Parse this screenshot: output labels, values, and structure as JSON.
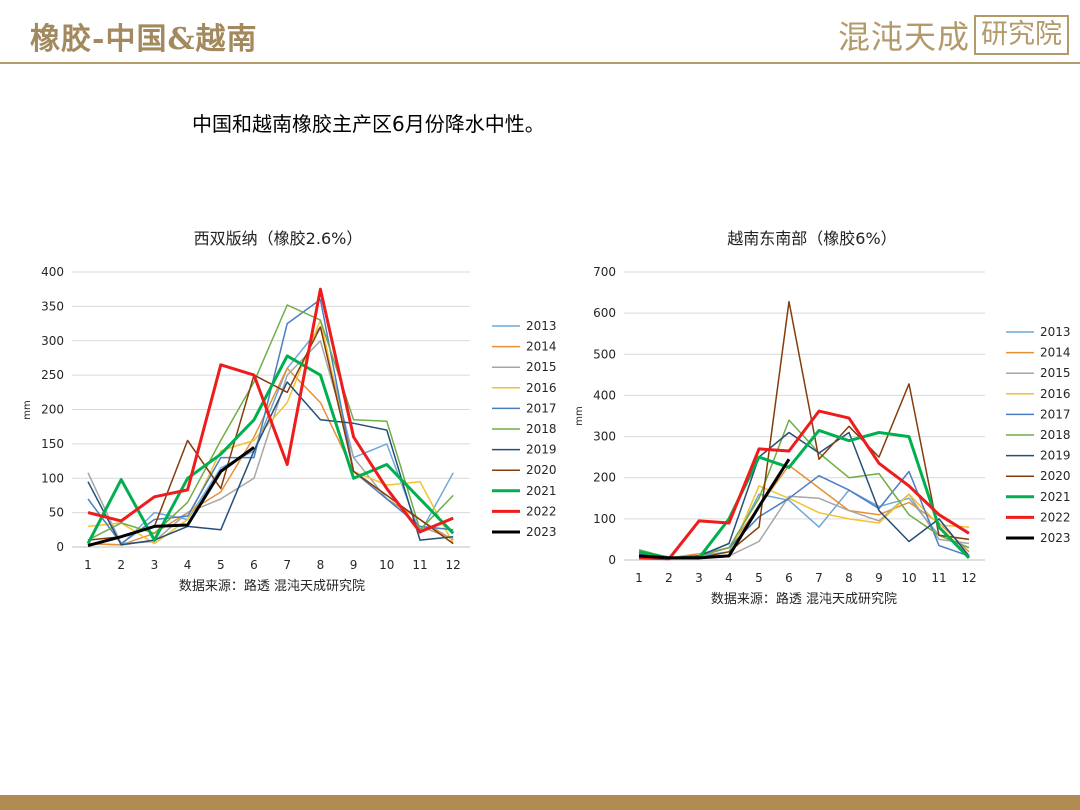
{
  "header": {
    "title": "橡胶-中国&越南",
    "logo_text": "混沌天成",
    "logo_box_text": "研究院"
  },
  "subtitle": "中国和越南橡胶主产区6月份降水中性。",
  "colors": {
    "gold": "#b49c6c",
    "footer": "#b08c52"
  },
  "chart_data": [
    {
      "type": "line",
      "title": "西双版纳（橡胶2.6%）",
      "ylabel": "mm",
      "source_note": "数据来源：路透  混沌天成研究院",
      "categories": [
        "1",
        "2",
        "3",
        "4",
        "5",
        "6",
        "7",
        "8",
        "9",
        "10",
        "11",
        "12"
      ],
      "ylim": [
        0,
        400
      ],
      "yticks": [
        0,
        50,
        100,
        150,
        200,
        250,
        300,
        350,
        400
      ],
      "grid": true,
      "legend": "right",
      "series": [
        {
          "name": "2013",
          "color": "#6fa8dc",
          "width": 1.5,
          "values": [
            5,
            3,
            50,
            40,
            115,
            140,
            260,
            320,
            130,
            150,
            20,
            108
          ]
        },
        {
          "name": "2014",
          "color": "#e69138",
          "width": 1.5,
          "values": [
            5,
            3,
            20,
            50,
            80,
            160,
            260,
            210,
            110,
            70,
            40,
            10
          ]
        },
        {
          "name": "2015",
          "color": "#a6a6a6",
          "width": 1.5,
          "values": [
            108,
            5,
            8,
            50,
            70,
            100,
            250,
            300,
            130,
            70,
            30,
            12
          ]
        },
        {
          "name": "2016",
          "color": "#f1c232",
          "width": 1.5,
          "values": [
            30,
            35,
            5,
            40,
            140,
            155,
            210,
            330,
            110,
            90,
            95,
            5
          ]
        },
        {
          "name": "2017",
          "color": "#4a7ec4",
          "width": 1.5,
          "values": [
            70,
            5,
            40,
            45,
            130,
            130,
            325,
            360,
            110,
            70,
            30,
            25
          ]
        },
        {
          "name": "2018",
          "color": "#70ad47",
          "width": 1.5,
          "values": [
            10,
            35,
            20,
            65,
            155,
            240,
            352,
            330,
            185,
            183,
            25,
            75
          ]
        },
        {
          "name": "2019",
          "color": "#264f78",
          "width": 1.5,
          "values": [
            95,
            3,
            10,
            30,
            25,
            140,
            240,
            185,
            180,
            170,
            10,
            15
          ]
        },
        {
          "name": "2020",
          "color": "#843c0c",
          "width": 1.5,
          "values": [
            10,
            15,
            30,
            155,
            85,
            250,
            225,
            320,
            110,
            75,
            40,
            5
          ]
        },
        {
          "name": "2021",
          "color": "#00b050",
          "width": 3,
          "values": [
            5,
            98,
            10,
            100,
            135,
            185,
            278,
            250,
            100,
            120,
            70,
            20
          ]
        },
        {
          "name": "2022",
          "color": "#ee1c1c",
          "width": 3,
          "values": [
            50,
            38,
            73,
            83,
            265,
            250,
            120,
            375,
            160,
            85,
            22,
            42
          ]
        },
        {
          "name": "2023",
          "color": "#000000",
          "width": 3,
          "values": [
            2,
            15,
            30,
            32,
            110,
            145,
            null,
            null,
            null,
            null,
            null,
            null
          ]
        }
      ]
    },
    {
      "type": "line",
      "title": "越南东南部（橡胶6%）",
      "ylabel": "mm",
      "source_note": "数据来源：路透  混沌天成研究院",
      "categories": [
        "1",
        "2",
        "3",
        "4",
        "5",
        "6",
        "7",
        "8",
        "9",
        "10",
        "11",
        "12"
      ],
      "ylim": [
        0,
        700
      ],
      "yticks": [
        0,
        100,
        200,
        300,
        400,
        500,
        600,
        700
      ],
      "grid": true,
      "legend": "right",
      "series": [
        {
          "name": "2013",
          "color": "#6fa8dc",
          "width": 1.5,
          "values": [
            10,
            5,
            10,
            20,
            160,
            145,
            80,
            170,
            130,
            150,
            60,
            30
          ]
        },
        {
          "name": "2014",
          "color": "#e69138",
          "width": 1.5,
          "values": [
            10,
            5,
            15,
            30,
            130,
            230,
            175,
            120,
            110,
            140,
            90,
            20
          ]
        },
        {
          "name": "2015",
          "color": "#a6a6a6",
          "width": 1.5,
          "values": [
            10,
            5,
            5,
            10,
            45,
            155,
            150,
            120,
            95,
            160,
            50,
            40
          ]
        },
        {
          "name": "2016",
          "color": "#f1c232",
          "width": 1.5,
          "values": [
            5,
            3,
            5,
            10,
            180,
            150,
            115,
            100,
            90,
            160,
            85,
            80
          ]
        },
        {
          "name": "2017",
          "color": "#4a7ec4",
          "width": 1.5,
          "values": [
            15,
            5,
            10,
            30,
            105,
            150,
            205,
            170,
            125,
            215,
            35,
            10
          ]
        },
        {
          "name": "2018",
          "color": "#70ad47",
          "width": 1.5,
          "values": [
            25,
            5,
            10,
            30,
            150,
            340,
            260,
            200,
            210,
            110,
            60,
            30
          ]
        },
        {
          "name": "2019",
          "color": "#264f78",
          "width": 1.5,
          "values": [
            10,
            5,
            10,
            40,
            250,
            310,
            260,
            310,
            120,
            45,
            100,
            10
          ]
        },
        {
          "name": "2020",
          "color": "#843c0c",
          "width": 1.5,
          "values": [
            10,
            5,
            5,
            20,
            80,
            628,
            245,
            325,
            250,
            428,
            60,
            50
          ]
        },
        {
          "name": "2021",
          "color": "#00b050",
          "width": 3,
          "values": [
            20,
            5,
            5,
            100,
            250,
            225,
            315,
            290,
            310,
            300,
            80,
            5
          ]
        },
        {
          "name": "2022",
          "color": "#ee1c1c",
          "width": 3,
          "values": [
            5,
            3,
            95,
            90,
            270,
            265,
            362,
            345,
            235,
            180,
            110,
            65
          ]
        },
        {
          "name": "2023",
          "color": "#000000",
          "width": 3,
          "values": [
            10,
            5,
            5,
            10,
            130,
            245,
            null,
            null,
            null,
            null,
            null,
            null
          ]
        }
      ]
    }
  ]
}
